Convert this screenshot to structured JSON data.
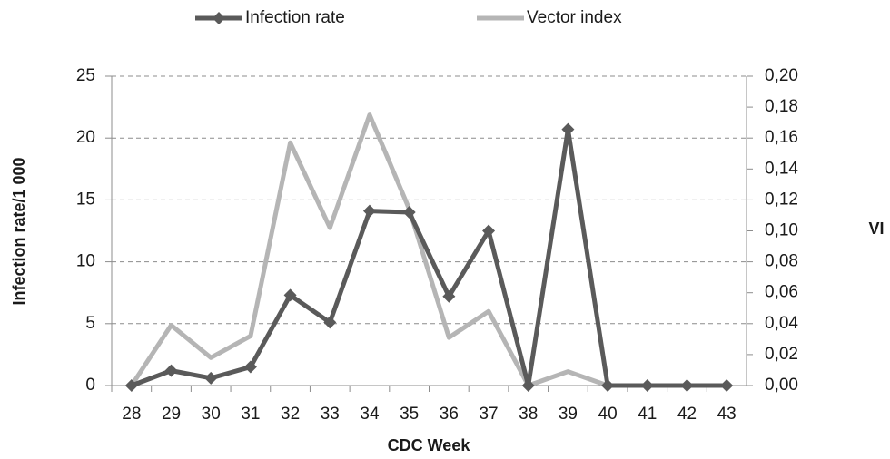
{
  "chart_data": {
    "type": "line",
    "y_label": "Infection rate/1 000",
    "y2_label": "VI",
    "x_label": "CDC Week",
    "categories": [
      "28",
      "29",
      "30",
      "31",
      "32",
      "33",
      "34",
      "35",
      "36",
      "37",
      "38",
      "39",
      "40",
      "41",
      "42",
      "43"
    ],
    "series": [
      {
        "name": "Infection rate",
        "color": "#5a5a5a",
        "marker": "diamond",
        "values": [
          0,
          1.2,
          0.6,
          1.5,
          7.3,
          5.1,
          14.1,
          14.0,
          7.2,
          12.5,
          0,
          20.7,
          0,
          0,
          0,
          0
        ]
      },
      {
        "name": "Vector index",
        "color": "#b5b5b5",
        "axis": "y2",
        "values": [
          0,
          0.039,
          0.018,
          0.032,
          0.157,
          0.102,
          0.175,
          0.114,
          0.031,
          0.048,
          0,
          0.009,
          0,
          0,
          0,
          0
        ]
      }
    ],
    "ylim": [
      0,
      25
    ],
    "yticks": [
      0,
      5,
      10,
      15,
      20,
      25
    ],
    "y2lim": [
      0,
      0.2
    ],
    "y2ticks": [
      {
        "value": 0,
        "label": "0,00"
      },
      {
        "value": 0.02,
        "label": "0,02"
      },
      {
        "value": 0.04,
        "label": "0,04"
      },
      {
        "value": 0.06,
        "label": "0,06"
      },
      {
        "value": 0.08,
        "label": "0,08"
      },
      {
        "value": 0.1,
        "label": "0,10"
      },
      {
        "value": 0.12,
        "label": "0,12"
      },
      {
        "value": 0.14,
        "label": "0,14"
      },
      {
        "value": 0.16,
        "label": "0,16"
      },
      {
        "value": 0.18,
        "label": "0,18"
      },
      {
        "value": 0.2,
        "label": "0,20"
      }
    ],
    "grid": true,
    "legend": "top"
  }
}
